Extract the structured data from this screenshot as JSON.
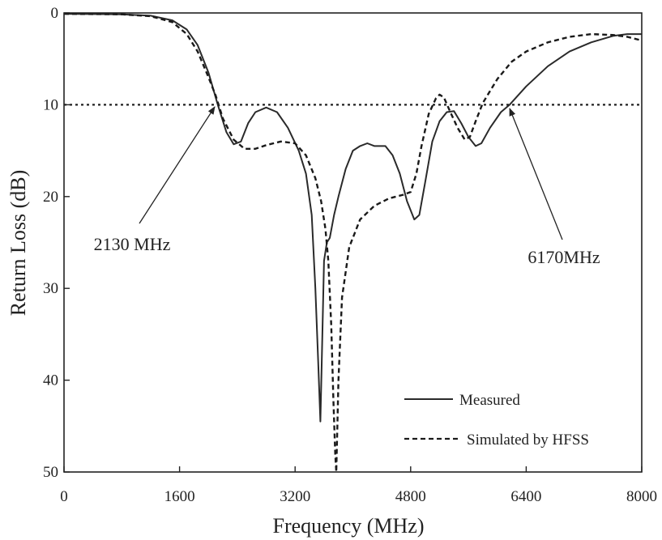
{
  "colors": {
    "axis": "#222222",
    "measured": "#2a2a2a",
    "simulated": "#1a1a1a",
    "reference": "#222222"
  },
  "chart_data": {
    "type": "line",
    "title": "",
    "xlabel": "Frequency (MHz)",
    "ylabel": "Return Loss (dB)",
    "xlim": [
      0,
      8000
    ],
    "ylim": [
      0,
      50
    ],
    "y_inverted": true,
    "grid": false,
    "xticks": [
      0,
      1600,
      3200,
      4800,
      6400,
      8000
    ],
    "xtick_labels": [
      "0",
      "1600",
      "3200",
      "4800",
      "6400",
      "8000"
    ],
    "yticks": [
      0,
      10,
      20,
      30,
      40,
      50
    ],
    "ytick_labels": [
      "0",
      "10",
      "20",
      "30",
      "40",
      "50"
    ],
    "legend_position": "bottom-right",
    "series": [
      {
        "name": "Measured",
        "style": "solid",
        "points": [
          [
            0,
            0.1
          ],
          [
            800,
            0.15
          ],
          [
            1200,
            0.3
          ],
          [
            1500,
            0.8
          ],
          [
            1700,
            1.8
          ],
          [
            1850,
            3.5
          ],
          [
            2000,
            6.5
          ],
          [
            2130,
            10.0
          ],
          [
            2250,
            13.0
          ],
          [
            2350,
            14.3
          ],
          [
            2450,
            14.0
          ],
          [
            2550,
            12.0
          ],
          [
            2650,
            10.8
          ],
          [
            2800,
            10.3
          ],
          [
            2950,
            10.8
          ],
          [
            3100,
            12.5
          ],
          [
            3250,
            15.0
          ],
          [
            3350,
            17.5
          ],
          [
            3430,
            22.0
          ],
          [
            3480,
            30.0
          ],
          [
            3520,
            38.0
          ],
          [
            3550,
            44.5
          ],
          [
            3575,
            36.0
          ],
          [
            3600,
            27.0
          ],
          [
            3640,
            25.0
          ],
          [
            3680,
            24.5
          ],
          [
            3740,
            22.0
          ],
          [
            3800,
            20.0
          ],
          [
            3900,
            17.0
          ],
          [
            4000,
            15.0
          ],
          [
            4100,
            14.5
          ],
          [
            4200,
            14.2
          ],
          [
            4300,
            14.5
          ],
          [
            4450,
            14.5
          ],
          [
            4550,
            15.5
          ],
          [
            4650,
            17.5
          ],
          [
            4750,
            20.5
          ],
          [
            4850,
            22.5
          ],
          [
            4920,
            22.0
          ],
          [
            5000,
            18.5
          ],
          [
            5100,
            14.0
          ],
          [
            5200,
            11.8
          ],
          [
            5300,
            10.8
          ],
          [
            5400,
            10.7
          ],
          [
            5500,
            12.0
          ],
          [
            5600,
            13.5
          ],
          [
            5700,
            14.5
          ],
          [
            5780,
            14.2
          ],
          [
            5900,
            12.5
          ],
          [
            6050,
            10.8
          ],
          [
            6170,
            10.0
          ],
          [
            6400,
            8.0
          ],
          [
            6700,
            5.8
          ],
          [
            7000,
            4.2
          ],
          [
            7300,
            3.2
          ],
          [
            7600,
            2.5
          ],
          [
            7800,
            2.3
          ],
          [
            8000,
            2.3
          ]
        ]
      },
      {
        "name": "Simulated by HFSS",
        "style": "dashed",
        "points": [
          [
            0,
            0.1
          ],
          [
            800,
            0.15
          ],
          [
            1200,
            0.35
          ],
          [
            1500,
            1.0
          ],
          [
            1700,
            2.3
          ],
          [
            1850,
            4.2
          ],
          [
            2000,
            7.0
          ],
          [
            2100,
            9.0
          ],
          [
            2200,
            11.5
          ],
          [
            2350,
            13.8
          ],
          [
            2500,
            14.8
          ],
          [
            2650,
            14.8
          ],
          [
            2800,
            14.4
          ],
          [
            3000,
            14.0
          ],
          [
            3200,
            14.2
          ],
          [
            3350,
            15.5
          ],
          [
            3480,
            18.0
          ],
          [
            3560,
            20.5
          ],
          [
            3620,
            23.5
          ],
          [
            3660,
            27.0
          ],
          [
            3700,
            34.0
          ],
          [
            3730,
            42.0
          ],
          [
            3755,
            48.0
          ],
          [
            3770,
            50.0
          ],
          [
            3800,
            40.0
          ],
          [
            3850,
            31.0
          ],
          [
            3950,
            25.5
          ],
          [
            4100,
            22.5
          ],
          [
            4300,
            21.0
          ],
          [
            4500,
            20.2
          ],
          [
            4700,
            19.8
          ],
          [
            4800,
            19.5
          ],
          [
            4880,
            17.5
          ],
          [
            4950,
            14.5
          ],
          [
            5050,
            11.0
          ],
          [
            5150,
            9.3
          ],
          [
            5200,
            8.9
          ],
          [
            5260,
            9.2
          ],
          [
            5350,
            10.8
          ],
          [
            5450,
            12.5
          ],
          [
            5550,
            13.8
          ],
          [
            5620,
            13.5
          ],
          [
            5700,
            11.8
          ],
          [
            5800,
            9.8
          ],
          [
            6000,
            7.2
          ],
          [
            6200,
            5.3
          ],
          [
            6400,
            4.2
          ],
          [
            6700,
            3.2
          ],
          [
            7000,
            2.6
          ],
          [
            7300,
            2.3
          ],
          [
            7600,
            2.4
          ],
          [
            7800,
            2.6
          ],
          [
            8000,
            3.0
          ]
        ]
      },
      {
        "name": "",
        "style": "dotted",
        "role": "reference",
        "points": [
          [
            0,
            10
          ],
          [
            8000,
            10
          ]
        ]
      }
    ],
    "annotations": [
      {
        "text": "2130 MHz",
        "x": 2130,
        "y": 10
      },
      {
        "text": "6170MHz",
        "x": 6170,
        "y": 10
      }
    ]
  },
  "legend": {
    "measured_label": "Measured",
    "simulated_label": "Simulated by HFSS"
  }
}
